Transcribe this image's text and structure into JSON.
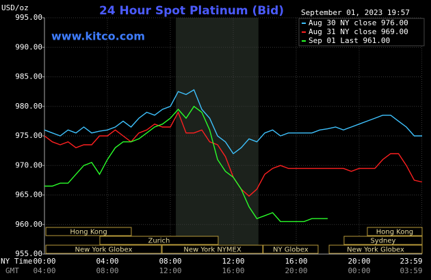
{
  "chart_data": {
    "type": "line",
    "title": "24 Hour Spot Platinum (Bid)",
    "timestamp": "September 01, 2023 19:57",
    "watermark": "www.kitco.com",
    "y_label": "USD/oz",
    "x_label": "NY Time",
    "x2_label": "GMT",
    "x": [
      0,
      0.5,
      1,
      1.5,
      2,
      2.5,
      3,
      3.5,
      4,
      4.5,
      5,
      5.5,
      6,
      6.5,
      7,
      7.5,
      8,
      8.5,
      9,
      9.5,
      10,
      10.5,
      11,
      11.5,
      12,
      12.5,
      13,
      13.5,
      14,
      14.5,
      15,
      15.5,
      16,
      16.5,
      17,
      17.5,
      18,
      18.5,
      19,
      19.5,
      20,
      20.5,
      21,
      21.5,
      22,
      22.5,
      23,
      23.5,
      24
    ],
    "series": [
      {
        "name": "Aug 30 NY close 976.00",
        "color": "#3fc3ff",
        "values": [
          976,
          975.5,
          975,
          976,
          975.5,
          976.5,
          975.5,
          975.8,
          976,
          976.5,
          977.5,
          976.5,
          978,
          979,
          978.5,
          979.5,
          980,
          982.5,
          982,
          982.8,
          979.5,
          978,
          975,
          974,
          972,
          973,
          974.5,
          974,
          975.5,
          976,
          975,
          975.5,
          975.5,
          975.5,
          975.5,
          976,
          976.2,
          976.5,
          976,
          976.5,
          977,
          977.5,
          978,
          978.5,
          978.5,
          977.5,
          976.5,
          975,
          975
        ]
      },
      {
        "name": "Aug 31 NY close 969.00",
        "color": "#ff2020",
        "values": [
          975,
          974,
          973.5,
          974,
          973,
          973.5,
          973.5,
          975,
          975,
          976,
          975,
          974,
          975.5,
          976,
          977,
          976.5,
          976.5,
          979,
          975.5,
          975.5,
          976,
          974,
          973.5,
          971.5,
          968,
          966,
          964.8,
          966,
          968.5,
          969.5,
          970,
          969.5,
          969.5,
          969.5,
          969.5,
          969.5,
          969.5,
          969.5,
          969.5,
          969,
          969.5,
          969.5,
          969.5,
          971,
          972,
          972,
          970,
          967.5,
          967.2
        ]
      },
      {
        "name": "Sep 01 Last 961.00",
        "color": "#2aff2a",
        "values": [
          966.5,
          966.5,
          967,
          967,
          968.5,
          970,
          970.5,
          968.5,
          971,
          973,
          974,
          974,
          974.5,
          975.5,
          976.5,
          977,
          978,
          979.5,
          978,
          980,
          979,
          976,
          971,
          969,
          968,
          966,
          963,
          961,
          961.5,
          962,
          960.5,
          960.5,
          960.5,
          960.5,
          961,
          961,
          961,
          null,
          null,
          null,
          null,
          null,
          null,
          null,
          null,
          null,
          null,
          null,
          null
        ]
      }
    ],
    "xlim": [
      0,
      24
    ],
    "xticks": [
      {
        "value": 0,
        "label": "00:00"
      },
      {
        "value": 4,
        "label": "04:00"
      },
      {
        "value": 8,
        "label": "08:00"
      },
      {
        "value": 12,
        "label": "12:00"
      },
      {
        "value": 16,
        "label": "16:00"
      },
      {
        "value": 20,
        "label": "20:00"
      },
      {
        "value": 23.98,
        "label": "23:59"
      }
    ],
    "x2ticks": [
      {
        "value": 0,
        "label": "04:00"
      },
      {
        "value": 4,
        "label": "08:00"
      },
      {
        "value": 8,
        "label": "12:00"
      },
      {
        "value": 12,
        "label": "16:00"
      },
      {
        "value": 16,
        "label": "20:00"
      },
      {
        "value": 20,
        "label": "00:00"
      },
      {
        "value": 23.98,
        "label": "03:59"
      }
    ],
    "ylim": [
      955,
      995
    ],
    "yticks": [
      {
        "value": 955,
        "label": "955.00"
      },
      {
        "value": 960,
        "label": "960.00"
      },
      {
        "value": 965,
        "label": "965.00"
      },
      {
        "value": 970,
        "label": "970.00"
      },
      {
        "value": 975,
        "label": "975.00"
      },
      {
        "value": 980,
        "label": "980.00"
      },
      {
        "value": 985,
        "label": "985.00"
      },
      {
        "value": 990,
        "label": "990.00"
      },
      {
        "value": 995,
        "label": "995.00"
      }
    ],
    "grid": true,
    "shaded_x": [
      8.35,
      13.6
    ],
    "sessions": [
      {
        "label": "Hong Kong",
        "start": 0.09,
        "end": 5.52
      },
      {
        "label": "Zurich",
        "start": 3.52,
        "end": 11.04
      },
      {
        "label": "New York Globex",
        "start": 0.09,
        "end": 7.43
      },
      {
        "label": "New York NYMEX",
        "start": 7.48,
        "end": 13.87
      },
      {
        "label": "NY Globex",
        "start": 13.9,
        "end": 17.39
      },
      {
        "label": "Hong Kong",
        "start": 20.52,
        "end": 24
      },
      {
        "label": "Sydney",
        "start": 19.04,
        "end": 24
      },
      {
        "label": "New York Globex",
        "start": 18.09,
        "end": 24
      }
    ]
  }
}
